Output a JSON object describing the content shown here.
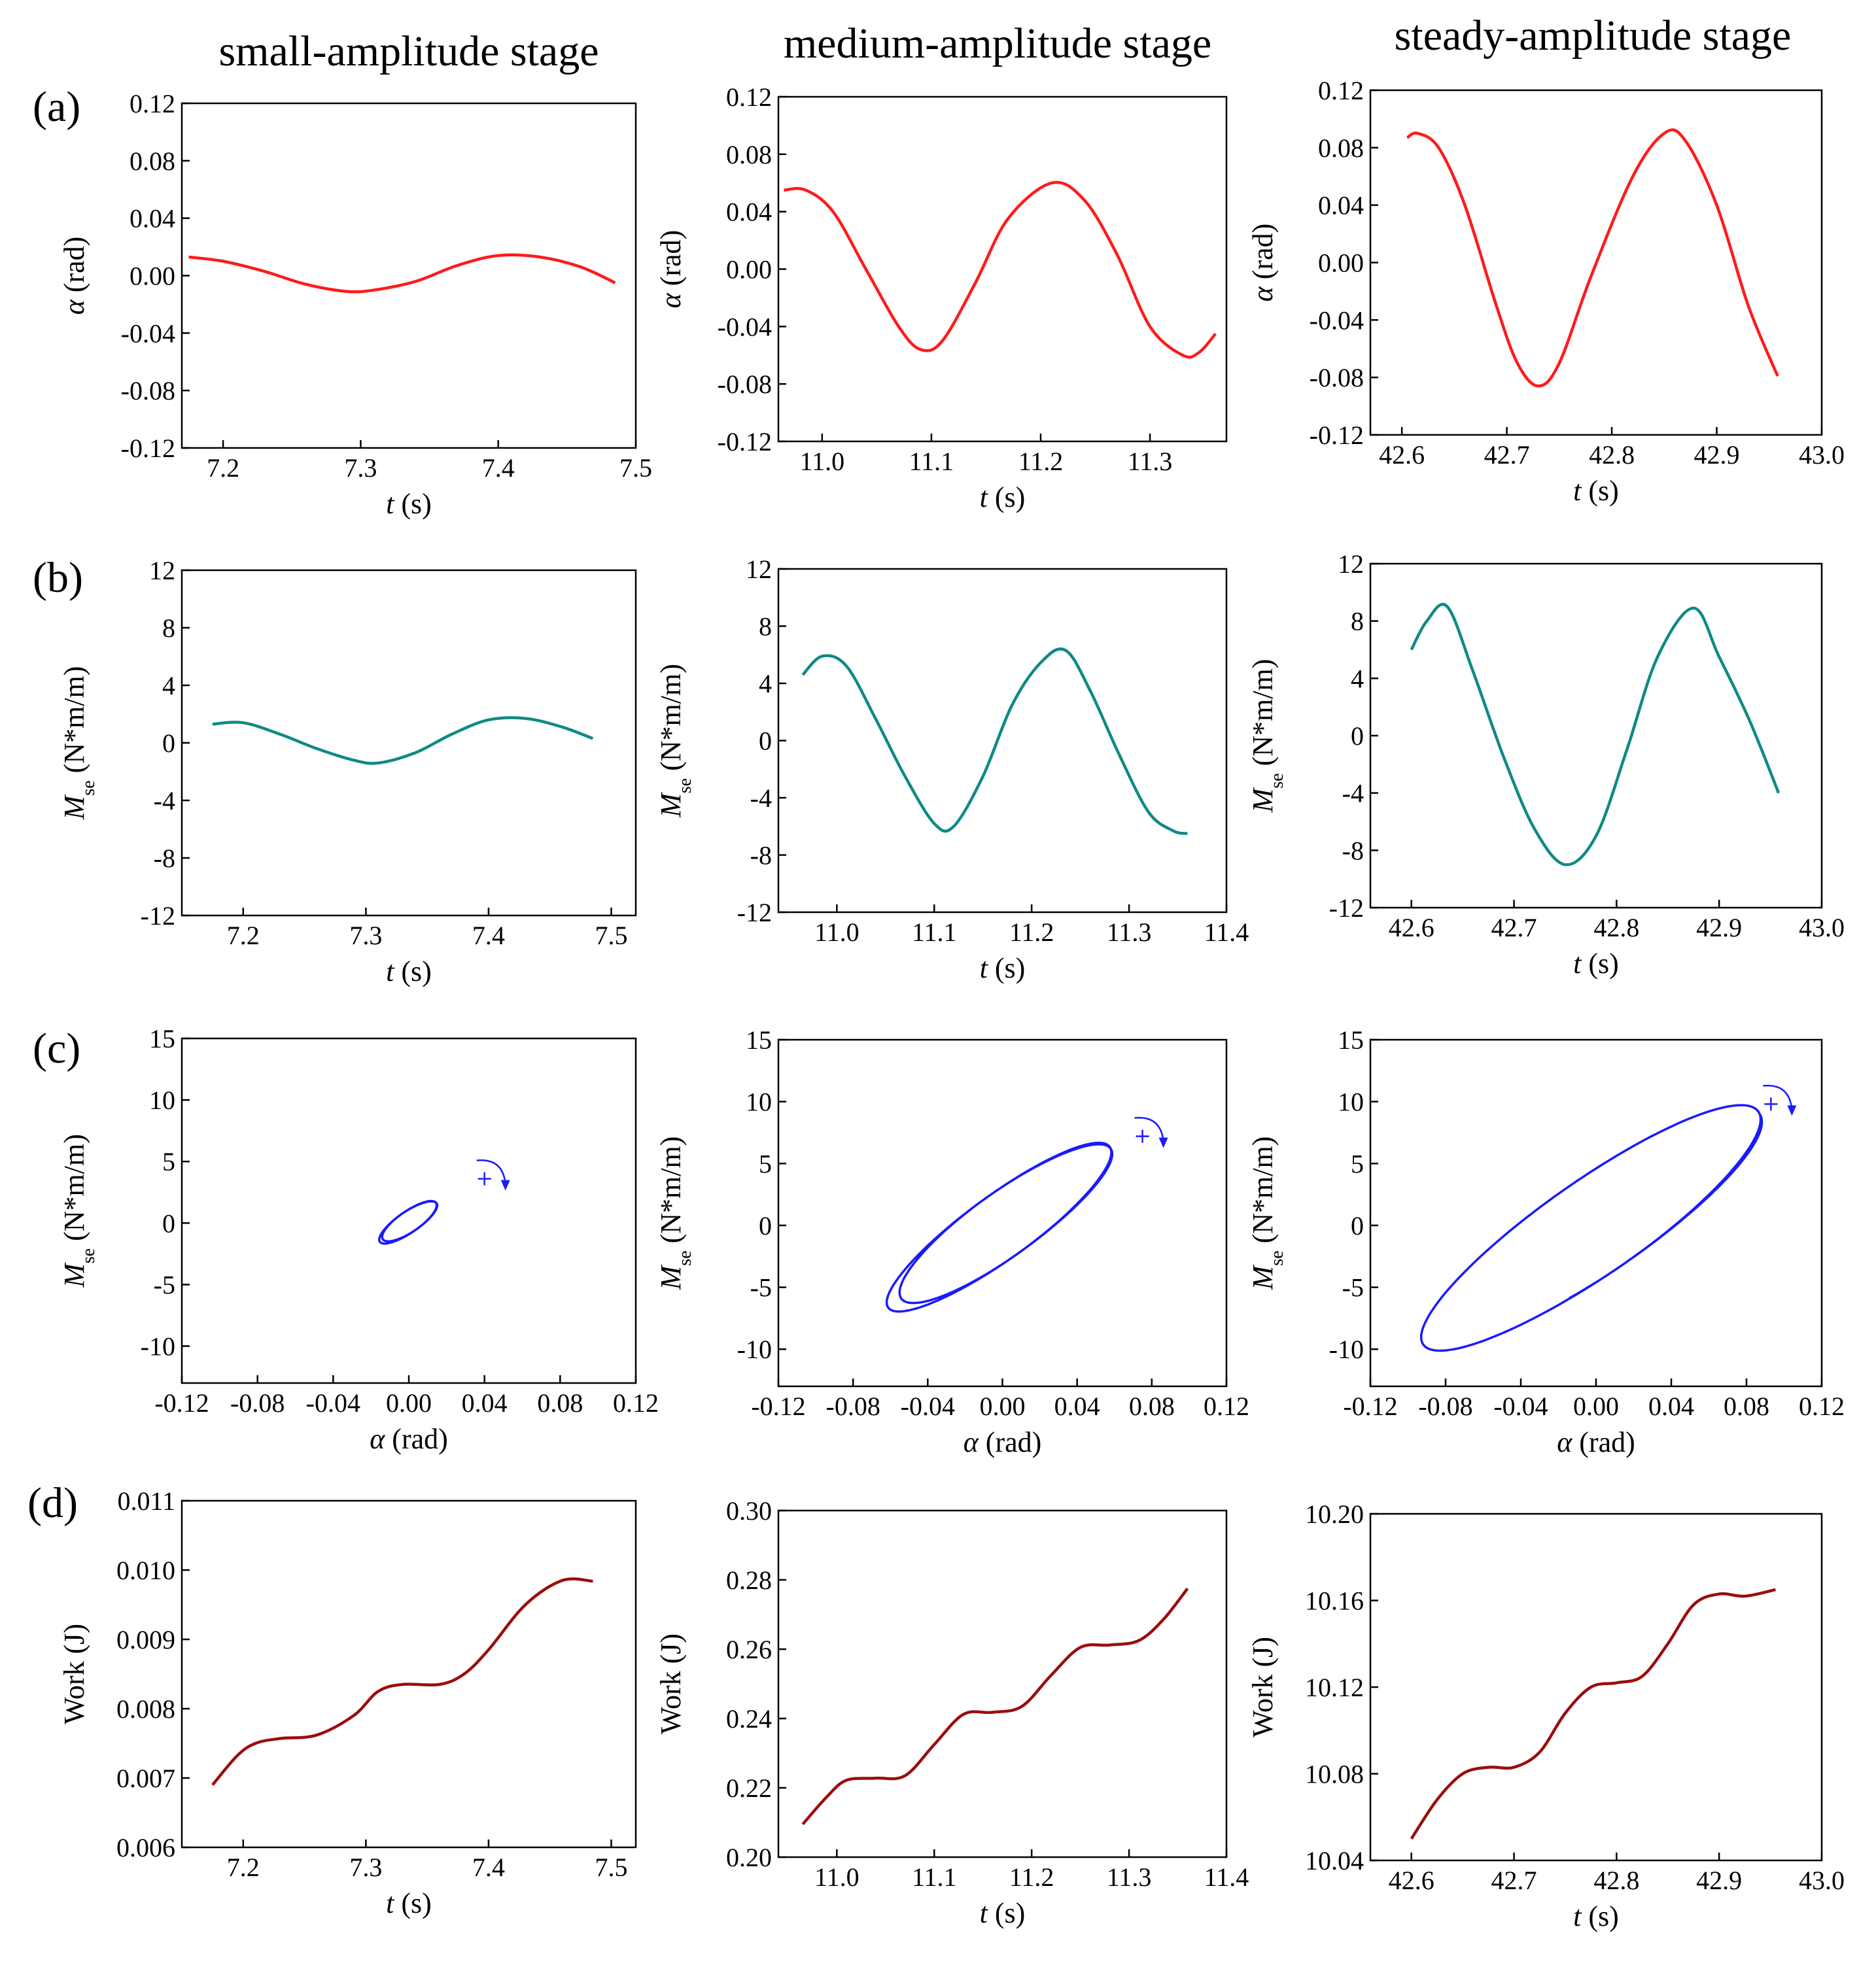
{
  "figure": {
    "column_titles": [
      "small-amplitude stage",
      "medium-amplitude stage",
      "steady-amplitude stage"
    ],
    "row_labels": [
      "(a)",
      "(b)",
      "(c)",
      "(d)"
    ],
    "colors": {
      "alpha": "#ff1a1a",
      "moment": "#0f8a85",
      "loop": "#1a1aff",
      "work": "#9b0d0d"
    }
  },
  "chart_data": [
    {
      "id": "a1",
      "row": 0,
      "col": 0,
      "type": "line",
      "title": "",
      "xlabel_italic": "t",
      "xlabel_rest": " (s)",
      "ylabel_html": "<tspan font-style='italic'>α</tspan> (rad)",
      "xlim": [
        7.17,
        7.5
      ],
      "ylim": [
        -0.12,
        0.12
      ],
      "xticks": [
        7.2,
        7.3,
        7.4,
        7.5
      ],
      "xtick_labels": [
        "7.2",
        "7.3",
        "7.4",
        "7.5"
      ],
      "yticks": [
        -0.12,
        -0.08,
        -0.04,
        0,
        0.04,
        0.08,
        0.12
      ],
      "ytick_labels": [
        "-0.12",
        "-0.08",
        "-0.04",
        "0.00",
        "0.04",
        "0.08",
        "0.12"
      ],
      "series": [
        {
          "name": "alpha",
          "color": "#ff1a1a",
          "x": [
            7.175,
            7.2,
            7.23,
            7.26,
            7.29,
            7.31,
            7.34,
            7.37,
            7.4,
            7.43,
            7.46,
            7.485
          ],
          "y": [
            0.013,
            0.01,
            0.003,
            -0.006,
            -0.011,
            -0.01,
            -0.004,
            0.007,
            0.014,
            0.013,
            0.006,
            -0.005
          ]
        }
      ]
    },
    {
      "id": "a2",
      "row": 0,
      "col": 1,
      "type": "line",
      "xlabel_italic": "t",
      "xlabel_rest": " (s)",
      "ylabel_html": "<tspan font-style='italic'>α</tspan> (rad)",
      "xlim": [
        10.96,
        11.37
      ],
      "ylim": [
        -0.12,
        0.12
      ],
      "xticks": [
        11.0,
        11.1,
        11.2,
        11.3
      ],
      "xtick_labels": [
        "11.0",
        "11.1",
        "11.2",
        "11.3"
      ],
      "yticks": [
        -0.12,
        -0.08,
        -0.04,
        0,
        0.04,
        0.08,
        0.12
      ],
      "ytick_labels": [
        "-0.12",
        "-0.08",
        "-0.04",
        "0.00",
        "0.04",
        "0.08",
        "0.12"
      ],
      "series": [
        {
          "name": "alpha",
          "color": "#ff1a1a",
          "x": [
            10.965,
            10.985,
            11.01,
            11.04,
            11.07,
            11.09,
            11.11,
            11.14,
            11.17,
            11.21,
            11.24,
            11.27,
            11.3,
            11.33,
            11.345,
            11.36
          ],
          "y": [
            0.055,
            0.055,
            0.04,
            0.0,
            -0.04,
            -0.056,
            -0.05,
            -0.01,
            0.035,
            0.06,
            0.048,
            0.01,
            -0.04,
            -0.06,
            -0.058,
            -0.045
          ]
        }
      ]
    },
    {
      "id": "a3",
      "row": 0,
      "col": 2,
      "type": "line",
      "xlabel_italic": "t",
      "xlabel_rest": " (s)",
      "ylabel_html": "<tspan font-style='italic'>α</tspan> (rad)",
      "xlim": [
        42.57,
        43.0
      ],
      "ylim": [
        -0.12,
        0.12
      ],
      "xticks": [
        42.6,
        42.7,
        42.8,
        42.9,
        43.0
      ],
      "xtick_labels": [
        "42.6",
        "42.7",
        "42.8",
        "42.9",
        "43.0"
      ],
      "yticks": [
        -0.12,
        -0.08,
        -0.04,
        0,
        0.04,
        0.08,
        0.12
      ],
      "ytick_labels": [
        "-0.12",
        "-0.08",
        "-0.04",
        "0.00",
        "0.04",
        "0.08",
        "0.12"
      ],
      "series": [
        {
          "name": "alpha",
          "color": "#ff1a1a",
          "x": [
            42.605,
            42.615,
            42.635,
            42.66,
            42.69,
            42.71,
            42.73,
            42.75,
            42.78,
            42.82,
            42.85,
            42.87,
            42.9,
            42.93,
            42.958
          ],
          "y": [
            0.087,
            0.09,
            0.08,
            0.04,
            -0.03,
            -0.07,
            -0.086,
            -0.07,
            -0.01,
            0.06,
            0.09,
            0.085,
            0.04,
            -0.03,
            -0.079
          ]
        }
      ]
    },
    {
      "id": "b1",
      "row": 1,
      "col": 0,
      "type": "line",
      "xlabel_italic": "t",
      "xlabel_rest": " (s)",
      "ylabel_html": "<tspan font-style='italic'>M</tspan><tspan baseline-shift='sub' font-size='28'>se</tspan> (N*m/m)",
      "xlim": [
        7.15,
        7.52
      ],
      "ylim": [
        -12,
        12
      ],
      "xticks": [
        7.2,
        7.3,
        7.4,
        7.5
      ],
      "xtick_labels": [
        "7.2",
        "7.3",
        "7.4",
        "7.5"
      ],
      "yticks": [
        -12,
        -8,
        -4,
        0,
        4,
        8,
        12
      ],
      "ytick_labels": [
        "-12",
        "-8",
        "-4",
        "0",
        "4",
        "8",
        "12"
      ],
      "series": [
        {
          "name": "Mse",
          "color": "#0f8a85",
          "x": [
            7.175,
            7.2,
            7.23,
            7.26,
            7.29,
            7.31,
            7.34,
            7.37,
            7.4,
            7.43,
            7.46,
            7.485
          ],
          "y": [
            1.3,
            1.4,
            0.6,
            -0.4,
            -1.2,
            -1.4,
            -0.7,
            0.6,
            1.6,
            1.7,
            1.1,
            0.3
          ]
        }
      ]
    },
    {
      "id": "b2",
      "row": 1,
      "col": 1,
      "type": "line",
      "xlabel_italic": "t",
      "xlabel_rest": " (s)",
      "ylabel_html": "<tspan font-style='italic'>M</tspan><tspan baseline-shift='sub' font-size='28'>se</tspan> (N*m/m)",
      "xlim": [
        10.94,
        11.4
      ],
      "ylim": [
        -12,
        12
      ],
      "xticks": [
        11.0,
        11.1,
        11.2,
        11.3,
        11.4
      ],
      "xtick_labels": [
        "11.0",
        "11.1",
        "11.2",
        "11.3",
        "11.4"
      ],
      "yticks": [
        -12,
        -8,
        -4,
        0,
        4,
        8,
        12
      ],
      "ytick_labels": [
        "-12",
        "-8",
        "-4",
        "0",
        "4",
        "8",
        "12"
      ],
      "series": [
        {
          "name": "Mse",
          "color": "#0f8a85",
          "x": [
            10.965,
            10.985,
            11.01,
            11.04,
            11.07,
            11.1,
            11.12,
            11.15,
            11.18,
            11.21,
            11.235,
            11.26,
            11.29,
            11.32,
            11.345,
            11.36
          ],
          "y": [
            4.6,
            5.9,
            5.2,
            1.5,
            -2.5,
            -5.8,
            -6.0,
            -2.5,
            2.5,
            5.5,
            6.3,
            3.5,
            -1.0,
            -5.0,
            -6.3,
            -6.5
          ]
        }
      ]
    },
    {
      "id": "b3",
      "row": 1,
      "col": 2,
      "type": "line",
      "xlabel_italic": "t",
      "xlabel_rest": " (s)",
      "ylabel_html": "<tspan font-style='italic'>M</tspan><tspan baseline-shift='sub' font-size='28'>se</tspan> (N*m/m)",
      "xlim": [
        42.56,
        43.0
      ],
      "ylim": [
        -12,
        12
      ],
      "xticks": [
        42.6,
        42.7,
        42.8,
        42.9,
        43.0
      ],
      "xtick_labels": [
        "42.6",
        "42.7",
        "42.8",
        "42.9",
        "43.0"
      ],
      "yticks": [
        -12,
        -8,
        -4,
        0,
        4,
        8,
        12
      ],
      "ytick_labels": [
        "-12",
        "-8",
        "-4",
        "0",
        "4",
        "8",
        "12"
      ],
      "series": [
        {
          "name": "Mse",
          "color": "#0f8a85",
          "x": [
            42.6,
            42.615,
            42.635,
            42.66,
            42.69,
            42.72,
            42.75,
            42.78,
            42.81,
            42.84,
            42.875,
            42.9,
            42.93,
            42.958
          ],
          "y": [
            6.0,
            8.0,
            9.0,
            4.5,
            -1.5,
            -6.5,
            -9.0,
            -7.0,
            -1.0,
            5.5,
            8.9,
            5.5,
            1.0,
            -4.0
          ]
        }
      ]
    },
    {
      "id": "c1",
      "row": 2,
      "col": 0,
      "type": "scatter",
      "xlabel_italic": "α",
      "xlabel_rest": " (rad)",
      "ylabel_html": "<tspan font-style='italic'>M</tspan><tspan baseline-shift='sub' font-size='28'>se</tspan> (N*m/m)",
      "xlim": [
        -0.12,
        0.12
      ],
      "ylim": [
        -13,
        15
      ],
      "xticks": [
        -0.12,
        -0.08,
        -0.04,
        0,
        0.04,
        0.08,
        0.12
      ],
      "xtick_labels": [
        "-0.12",
        "-0.08",
        "-0.04",
        "0.00",
        "0.04",
        "0.08",
        "0.12"
      ],
      "yticks": [
        -10,
        -5,
        0,
        5,
        10,
        15
      ],
      "ytick_labels": [
        "-10",
        "-5",
        "0",
        "5",
        "10",
        "15"
      ],
      "loop": {
        "cx": 0.0,
        "cy": 0.1,
        "ax": 0.014,
        "ay": 1.6,
        "bx": 0.005,
        "by": -0.5,
        "turns": 2.2
      },
      "marker": {
        "x": 0.04,
        "y": 3.6
      },
      "series": [
        {
          "name": "Mse vs alpha",
          "color": "#1a1aff"
        }
      ]
    },
    {
      "id": "c2",
      "row": 2,
      "col": 1,
      "type": "scatter",
      "xlabel_italic": "α",
      "xlabel_rest": " (rad)",
      "ylabel_html": "<tspan font-style='italic'>M</tspan><tspan baseline-shift='sub' font-size='28'>se</tspan> (N*m/m)",
      "xlim": [
        -0.12,
        0.12
      ],
      "ylim": [
        -13,
        15
      ],
      "xticks": [
        -0.12,
        -0.08,
        -0.04,
        0,
        0.04,
        0.08,
        0.12
      ],
      "xtick_labels": [
        "-0.12",
        "-0.08",
        "-0.04",
        "0.00",
        "0.04",
        "0.08",
        "0.12"
      ],
      "yticks": [
        -10,
        -5,
        0,
        5,
        10,
        15
      ],
      "ytick_labels": [
        "-10",
        "-5",
        "0",
        "5",
        "10",
        "15"
      ],
      "loop": {
        "cx": 0.0,
        "cy": 0.0,
        "ax": 0.058,
        "ay": 6.2,
        "bx": 0.008,
        "by": -2.3,
        "turns": 2.3
      },
      "marker": {
        "x": 0.075,
        "y": 7.2
      },
      "series": [
        {
          "name": "Mse vs alpha",
          "color": "#1a1aff"
        }
      ]
    },
    {
      "id": "c3",
      "row": 2,
      "col": 2,
      "type": "scatter",
      "xlabel_italic": "α",
      "xlabel_rest": " (rad)",
      "ylabel_html": "<tspan font-style='italic'>M</tspan><tspan baseline-shift='sub' font-size='28'>se</tspan> (N*m/m)",
      "xlim": [
        -0.12,
        0.12
      ],
      "ylim": [
        -13,
        15
      ],
      "xticks": [
        -0.12,
        -0.08,
        -0.04,
        0,
        0.04,
        0.08,
        0.12
      ],
      "xtick_labels": [
        "-0.12",
        "-0.08",
        "-0.04",
        "0.00",
        "0.04",
        "0.08",
        "0.12"
      ],
      "yticks": [
        -10,
        -5,
        0,
        5,
        10,
        15
      ],
      "ytick_labels": [
        "-10",
        "-5",
        "0",
        "5",
        "10",
        "15"
      ],
      "loop": {
        "cx": 0.0,
        "cy": 0.0,
        "ax": 0.087,
        "ay": 9.0,
        "bx": 0.012,
        "by": -3.4,
        "turns": 1.3
      },
      "marker": {
        "x": 0.093,
        "y": 9.8
      },
      "series": [
        {
          "name": "Mse vs alpha",
          "color": "#1a1aff"
        }
      ]
    },
    {
      "id": "d1",
      "row": 3,
      "col": 0,
      "type": "line",
      "xlabel_italic": "t",
      "xlabel_rest": " (s)",
      "ylabel_html": "Work (J)",
      "xlim": [
        7.15,
        7.52
      ],
      "ylim": [
        0.006,
        0.011
      ],
      "xticks": [
        7.2,
        7.3,
        7.4,
        7.5
      ],
      "xtick_labels": [
        "7.2",
        "7.3",
        "7.4",
        "7.5"
      ],
      "yticks": [
        0.006,
        0.007,
        0.008,
        0.009,
        0.01,
        0.011
      ],
      "ytick_labels": [
        "0.006",
        "0.007",
        "0.008",
        "0.009",
        "0.010",
        "0.011"
      ],
      "series": [
        {
          "name": "Work",
          "color": "#9b0d0d",
          "x": [
            7.175,
            7.195,
            7.21,
            7.23,
            7.26,
            7.29,
            7.31,
            7.33,
            7.36,
            7.38,
            7.4,
            7.43,
            7.46,
            7.485
          ],
          "y": [
            0.0069,
            0.00732,
            0.0075,
            0.00757,
            0.00762,
            0.0079,
            0.00825,
            0.00835,
            0.00835,
            0.0085,
            0.00885,
            0.0095,
            0.00985,
            0.00984
          ]
        }
      ]
    },
    {
      "id": "d2",
      "row": 3,
      "col": 1,
      "type": "line",
      "xlabel_italic": "t",
      "xlabel_rest": " (s)",
      "ylabel_html": "Work (J)",
      "xlim": [
        10.94,
        11.4
      ],
      "ylim": [
        0.2,
        0.3
      ],
      "xticks": [
        11.0,
        11.1,
        11.2,
        11.3,
        11.4
      ],
      "xtick_labels": [
        "11.0",
        "11.1",
        "11.2",
        "11.3",
        "11.4"
      ],
      "yticks": [
        0.2,
        0.22,
        0.24,
        0.26,
        0.28,
        0.3
      ],
      "ytick_labels": [
        "0.20",
        "0.22",
        "0.24",
        "0.26",
        "0.28",
        "0.30"
      ],
      "series": [
        {
          "name": "Work",
          "color": "#9b0d0d",
          "x": [
            10.965,
            10.99,
            11.01,
            11.04,
            11.07,
            11.1,
            11.13,
            11.16,
            11.19,
            11.22,
            11.25,
            11.28,
            11.31,
            11.335,
            11.36
          ],
          "y": [
            0.2095,
            0.2175,
            0.2222,
            0.2228,
            0.2235,
            0.2325,
            0.2412,
            0.2418,
            0.2435,
            0.2525,
            0.2605,
            0.2612,
            0.2625,
            0.2685,
            0.2775
          ]
        }
      ]
    },
    {
      "id": "d3",
      "row": 3,
      "col": 2,
      "type": "line",
      "xlabel_italic": "t",
      "xlabel_rest": " (s)",
      "ylabel_html": "Work (J)",
      "xlim": [
        42.56,
        43.0
      ],
      "ylim": [
        10.04,
        10.2
      ],
      "xticks": [
        42.6,
        42.7,
        42.8,
        42.9,
        43.0
      ],
      "xtick_labels": [
        "42.6",
        "42.7",
        "42.8",
        "42.9",
        "43.0"
      ],
      "yticks": [
        10.04,
        10.08,
        10.12,
        10.16,
        10.2
      ],
      "ytick_labels": [
        "10.04",
        "10.08",
        "10.12",
        "10.16",
        "10.20"
      ],
      "series": [
        {
          "name": "Work",
          "color": "#9b0d0d",
          "x": [
            42.6,
            42.625,
            42.65,
            42.675,
            42.7,
            42.725,
            42.75,
            42.775,
            42.8,
            42.825,
            42.85,
            42.875,
            42.9,
            42.925,
            42.955
          ],
          "y": [
            10.05,
            10.068,
            10.08,
            10.083,
            10.083,
            10.09,
            10.108,
            10.12,
            10.122,
            10.125,
            10.14,
            10.158,
            10.163,
            10.162,
            10.165
          ]
        }
      ]
    }
  ]
}
